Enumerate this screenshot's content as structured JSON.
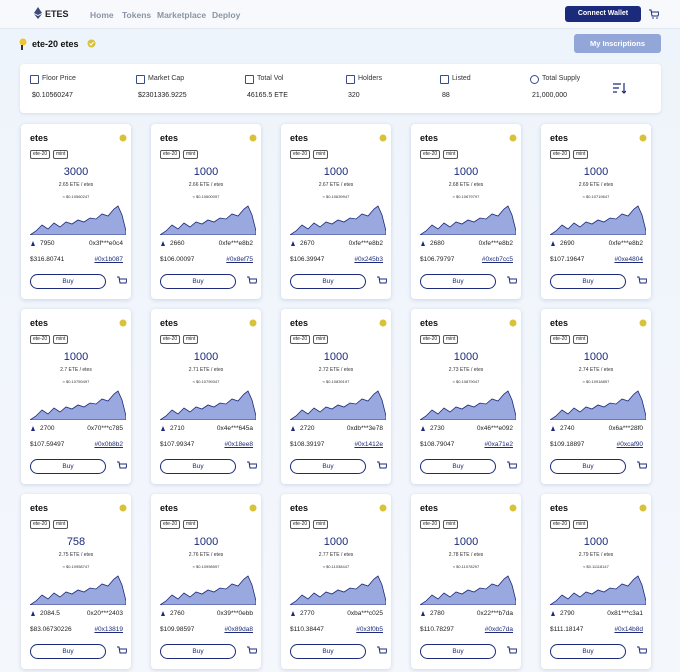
{
  "header": {
    "logo": "ETES",
    "nav": [
      "Home",
      "Tokens",
      "Marketplace",
      "Deploy"
    ],
    "connect": "Connect Wallet"
  },
  "subheader": {
    "title": "ete-20 etes",
    "button": "My Inscriptions"
  },
  "stats": [
    {
      "label": "Floor Price",
      "value": "$0.10560247"
    },
    {
      "label": "Market Cap",
      "value": "$2301336.9225"
    },
    {
      "label": "Total Vol",
      "value": "46165.5 ETE"
    },
    {
      "label": "Holders",
      "value": "320"
    },
    {
      "label": "Listed",
      "value": "88"
    },
    {
      "label": "Total Supply",
      "value": "21,000,000"
    }
  ],
  "cards": [
    {
      "name": "etes",
      "tags": [
        "ete-20",
        "mint"
      ],
      "amount": "3000",
      "price": "2.65 ETE / etes",
      "usd": "≈ $0.10560247",
      "id": "7950",
      "owner": "0x3f***e0c4",
      "total": "$316.80741",
      "tx": "#0x1b087",
      "buy": "Buy"
    },
    {
      "name": "etes",
      "tags": [
        "ete-20",
        "mint"
      ],
      "amount": "1000",
      "price": "2.66 ETE / etes",
      "usd": "≈ $0.10600097",
      "id": "2660",
      "owner": "0xfe***e8b2",
      "total": "$106.00097",
      "tx": "#0x8ef75",
      "buy": "Buy"
    },
    {
      "name": "etes",
      "tags": [
        "ete-20",
        "mint"
      ],
      "amount": "1000",
      "price": "2.67 ETE / etes",
      "usd": "≈ $0.10639947",
      "id": "2670",
      "owner": "0xfe***e8b2",
      "total": "$106.39947",
      "tx": "#0x245b3",
      "buy": "Buy"
    },
    {
      "name": "etes",
      "tags": [
        "ete-20",
        "mint"
      ],
      "amount": "1000",
      "price": "2.68 ETE / etes",
      "usd": "≈ $0.10679797",
      "id": "2680",
      "owner": "0xfe***e8b2",
      "total": "$106.79797",
      "tx": "#0xcb7cc5",
      "buy": "Buy"
    },
    {
      "name": "etes",
      "tags": [
        "ete-20",
        "mint"
      ],
      "amount": "1000",
      "price": "2.69 ETE / etes",
      "usd": "≈ $0.10719647",
      "id": "2690",
      "owner": "0xfe***e8b2",
      "total": "$107.19647",
      "tx": "#0xe4804",
      "buy": "Buy"
    },
    {
      "name": "etes",
      "tags": [
        "ete-20",
        "mint"
      ],
      "amount": "1000",
      "price": "2.7 ETE / etes",
      "usd": "≈ $0.10759497",
      "id": "2700",
      "owner": "0x70***c785",
      "total": "$107.59497",
      "tx": "#0x0b8b2",
      "buy": "Buy"
    },
    {
      "name": "etes",
      "tags": [
        "ete-20",
        "mint"
      ],
      "amount": "1000",
      "price": "2.71 ETE / etes",
      "usd": "≈ $0.10799347",
      "id": "2710",
      "owner": "0x4e***645a",
      "total": "$107.99347",
      "tx": "#0x18ee8",
      "buy": "Buy"
    },
    {
      "name": "etes",
      "tags": [
        "ete-20",
        "mint"
      ],
      "amount": "1000",
      "price": "2.72 ETE / etes",
      "usd": "≈ $0.10839197",
      "id": "2720",
      "owner": "0xdb***3e78",
      "total": "$108.39197",
      "tx": "#0x1412e",
      "buy": "Buy"
    },
    {
      "name": "etes",
      "tags": [
        "ete-20",
        "mint"
      ],
      "amount": "1000",
      "price": "2.73 ETE / etes",
      "usd": "≈ $0.10879047",
      "id": "2730",
      "owner": "0x46***e092",
      "total": "$108.79047",
      "tx": "#0xa71e2",
      "buy": "Buy"
    },
    {
      "name": "etes",
      "tags": [
        "ete-20",
        "mint"
      ],
      "amount": "1000",
      "price": "2.74 ETE / etes",
      "usd": "≈ $0.10918897",
      "id": "2740",
      "owner": "0x6a***28f0",
      "total": "$109.18897",
      "tx": "#0xcaf90",
      "buy": "Buy"
    },
    {
      "name": "etes",
      "tags": [
        "ete-20",
        "mint"
      ],
      "amount": "758",
      "price": "2.75 ETE / etes",
      "usd": "≈ $0.10958747",
      "id": "2084.5",
      "owner": "0x20***2403",
      "total": "$83.06730226",
      "tx": "#0x13819",
      "buy": "Buy"
    },
    {
      "name": "etes",
      "tags": [
        "ete-20",
        "mint"
      ],
      "amount": "1000",
      "price": "2.76 ETE / etes",
      "usd": "≈ $0.10998597",
      "id": "2760",
      "owner": "0x39***0ebb",
      "total": "$109.98597",
      "tx": "#0x89da8",
      "buy": "Buy"
    },
    {
      "name": "etes",
      "tags": [
        "ete-20",
        "mint"
      ],
      "amount": "1000",
      "price": "2.77 ETE / etes",
      "usd": "≈ $0.11038447",
      "id": "2770",
      "owner": "0xba***c025",
      "total": "$110.38447",
      "tx": "#0x3f0b5",
      "buy": "Buy"
    },
    {
      "name": "etes",
      "tags": [
        "ete-20",
        "mint"
      ],
      "amount": "1000",
      "price": "2.78 ETE / etes",
      "usd": "≈ $0.11078297",
      "id": "2780",
      "owner": "0x22***b7da",
      "total": "$110.78297",
      "tx": "#0xdc7da",
      "buy": "Buy"
    },
    {
      "name": "etes",
      "tags": [
        "ete-20",
        "mint"
      ],
      "amount": "1000",
      "price": "2.79 ETE / etes",
      "usd": "≈ $0.11118147",
      "id": "2790",
      "owner": "0x81***c3a1",
      "total": "$111.18147",
      "tx": "#0x14b8d",
      "buy": "Buy"
    }
  ]
}
